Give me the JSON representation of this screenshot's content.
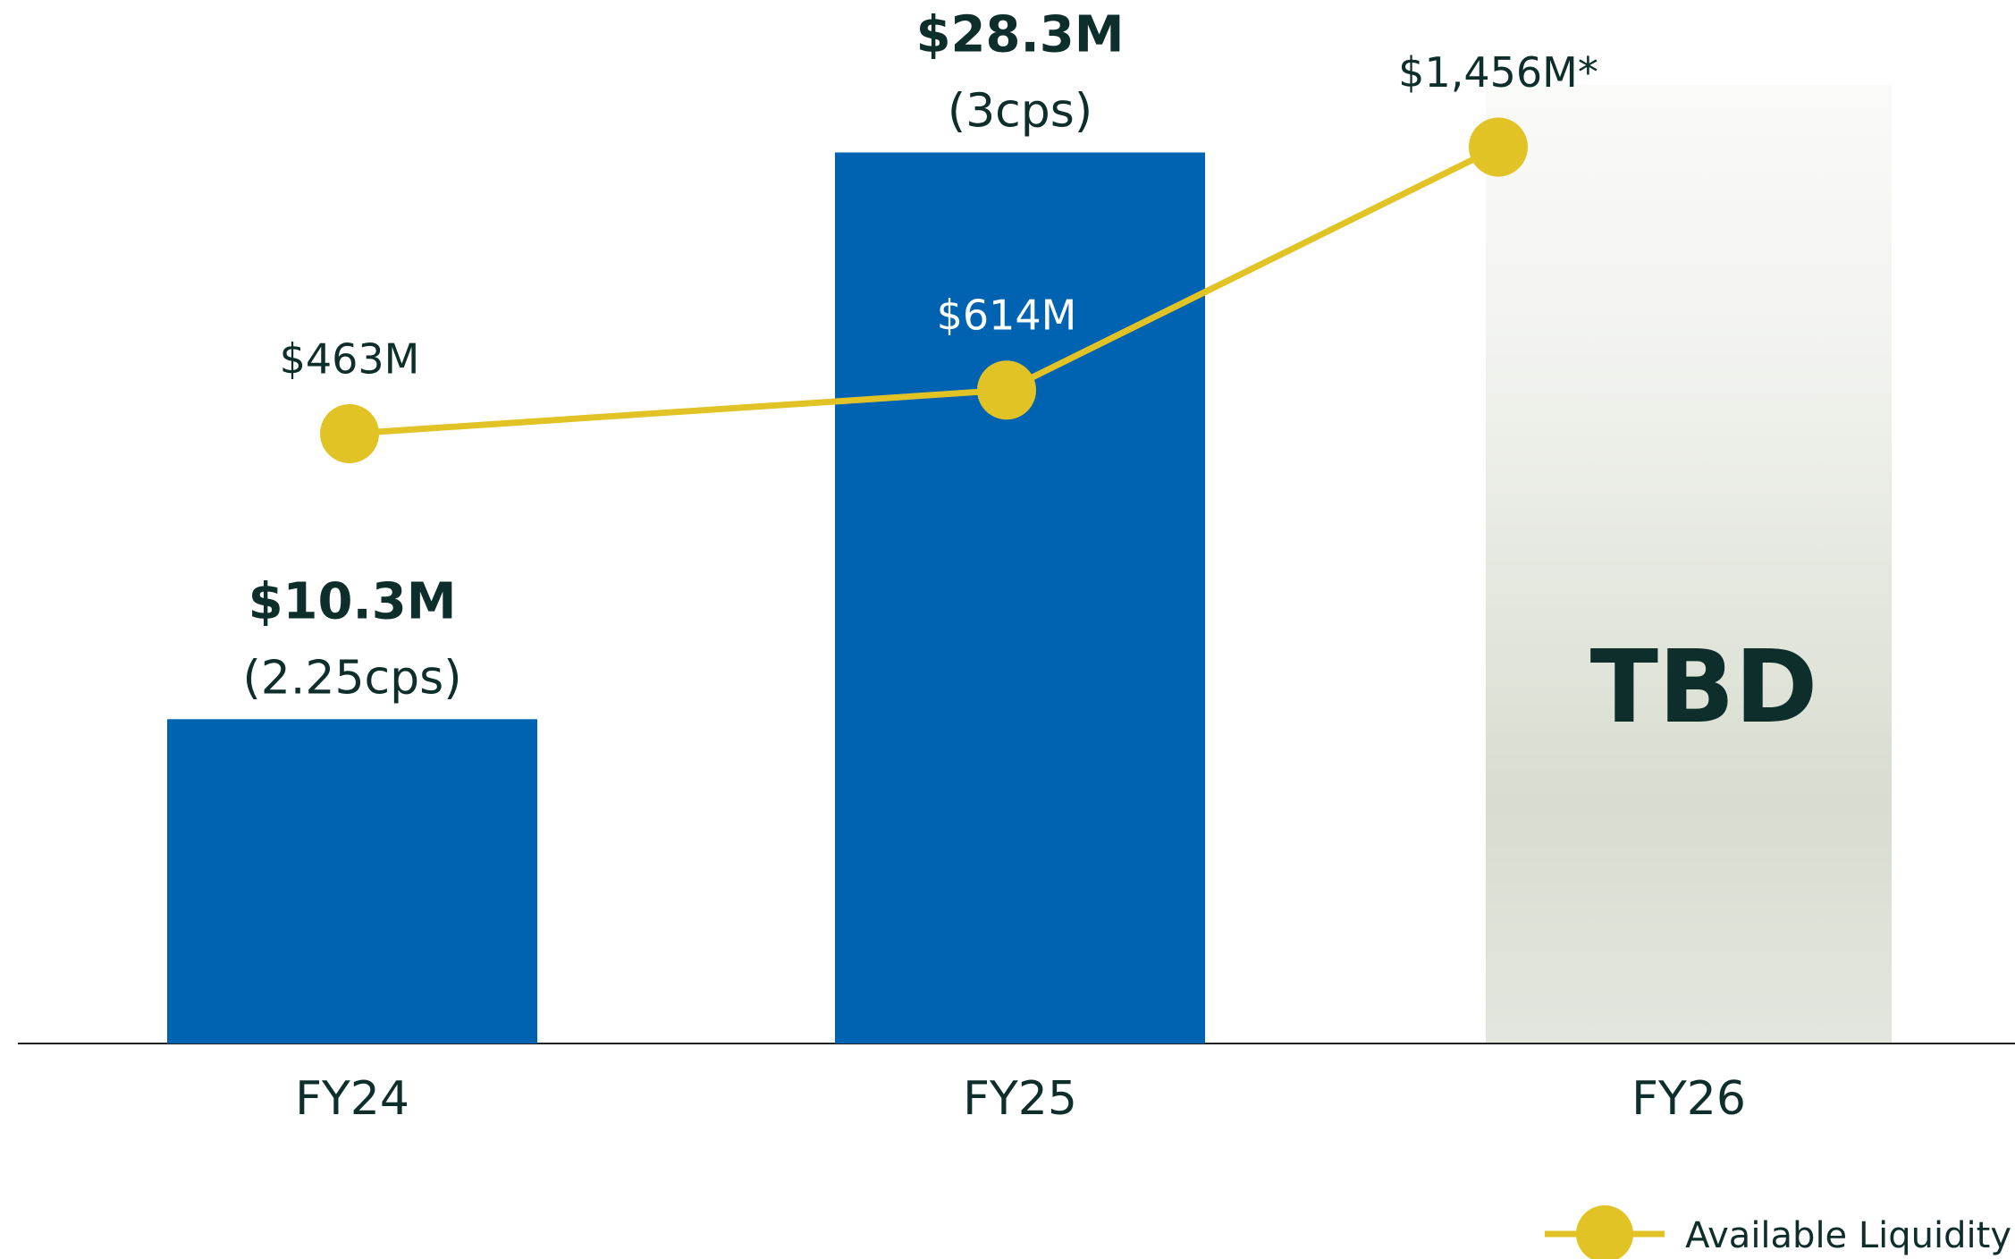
{
  "chart_data": {
    "type": "bar",
    "categories": [
      "FY24",
      "FY25",
      "FY26"
    ],
    "ylim": [
      0,
      33
    ],
    "y2lim": [
      -1650,
      1950
    ],
    "legend": "bottom-right",
    "placeholder_label": "TBD",
    "series": [
      {
        "type": "bar",
        "color": "#0063b1",
        "values": [
          10.3,
          28.3,
          null
        ],
        "value_labels": [
          "$10.3M",
          "$28.3M",
          null
        ],
        "secondary_labels": [
          "(2.25cps)",
          "(3cps)",
          null
        ]
      },
      {
        "type": "line",
        "name": "Available Liquidity",
        "axis": "y2",
        "color": "#e2c325",
        "values": [
          463,
          614,
          1456
        ],
        "value_labels": [
          "$463M",
          "$614M",
          "$1,456M*"
        ]
      }
    ]
  }
}
